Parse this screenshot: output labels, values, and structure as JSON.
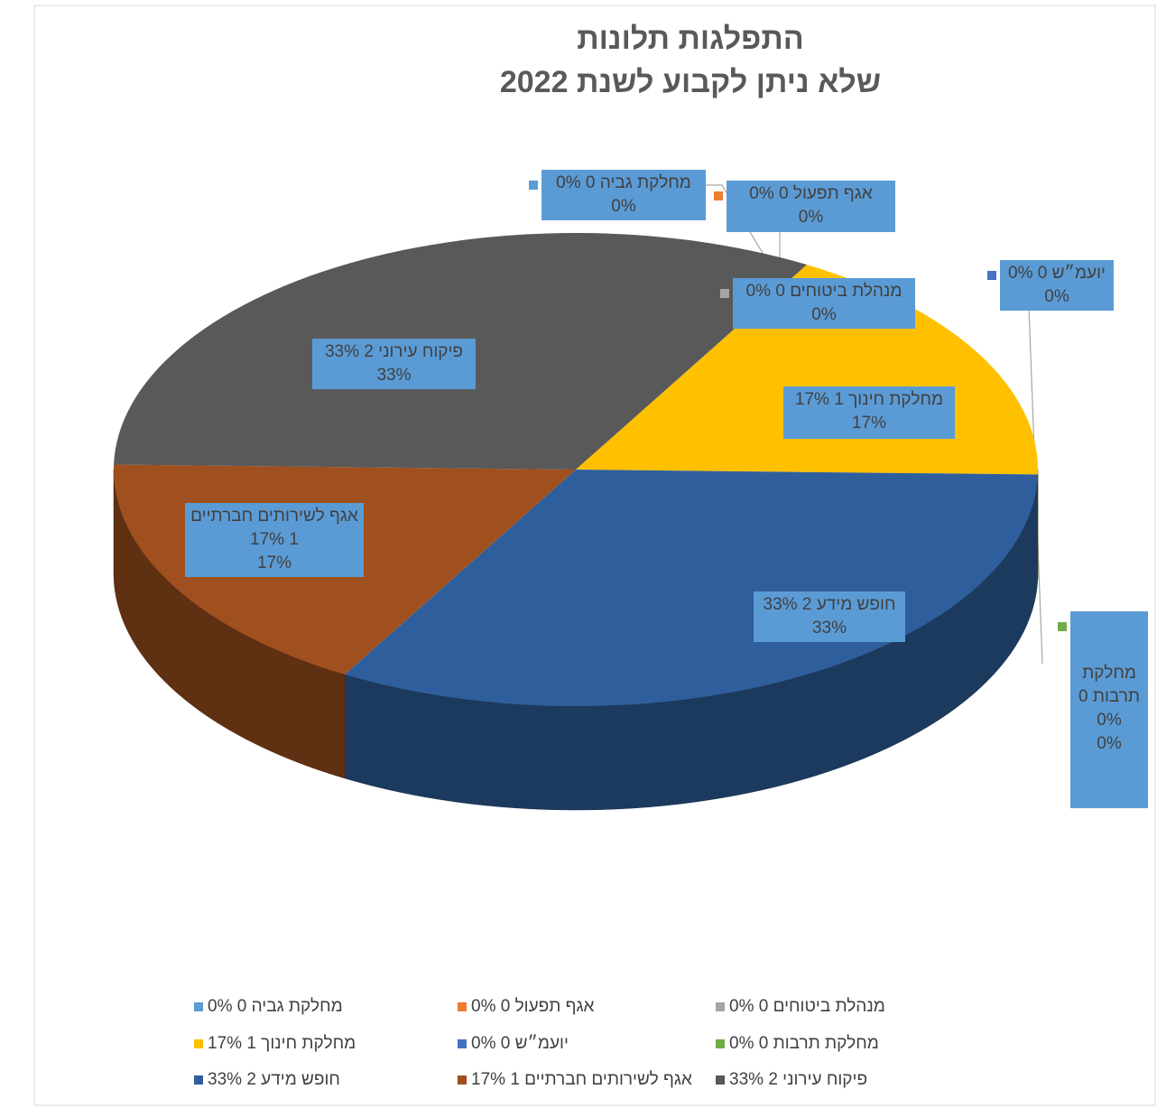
{
  "chart_data": {
    "type": "pie",
    "title": [
      "התפלגות תלונות",
      "שלא ניתן לקבוע לשנת 2022"
    ],
    "categories": [
      "מחלקת גביה 0 0%",
      "אגף תפעול 0 0%",
      "מנהלת ביטוחים 0 0%",
      "מחלקת חינוך 1 17%",
      "יועמ״ש 0 0%",
      "מחלקת תרבות 0 0%",
      "חופש מידע 2 33%",
      "אגף לשירותים חברתיים 1 17%",
      "פיקוח עירוני 2 33%"
    ],
    "values": [
      0,
      0,
      0,
      17,
      0,
      0,
      33,
      17,
      33
    ],
    "value_labels": [
      "0%",
      "0%",
      "0%",
      "17%",
      "0%",
      "0%",
      "33%",
      "17%",
      "33%"
    ],
    "colors": [
      "#5b9bd5",
      "#ed7d31",
      "#a5a5a5",
      "#ffc000",
      "#4472c4",
      "#70ad47",
      "#2e5f9c",
      "#a0501e",
      "#595959"
    ],
    "legend": "bottom"
  }
}
